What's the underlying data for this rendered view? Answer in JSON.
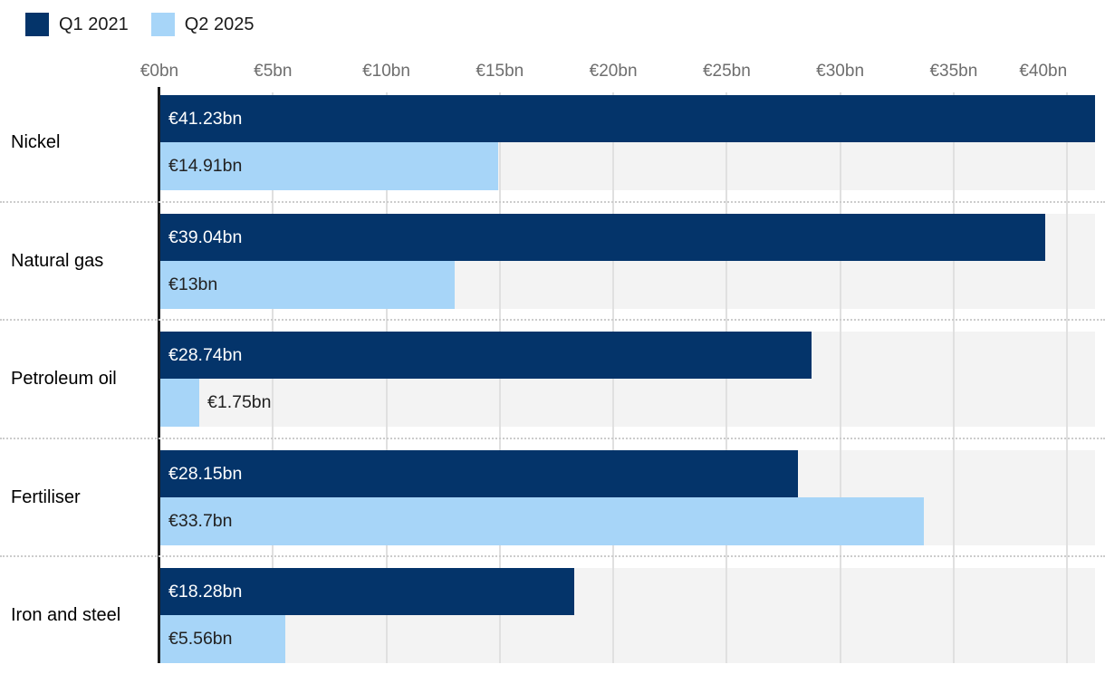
{
  "legend": {
    "items": [
      {
        "label": "Q1 2021",
        "color": "#04346a"
      },
      {
        "label": "Q2 2025",
        "color": "#a7d5f8"
      }
    ]
  },
  "chart_data": {
    "type": "bar",
    "orientation": "horizontal",
    "title": "",
    "xlabel": "",
    "ylabel": "",
    "unit": "€bn",
    "categories": [
      "Nickel",
      "Natural gas",
      "Petroleum oil",
      "Fertiliser",
      "Iron and steel"
    ],
    "series": [
      {
        "name": "Q1 2021",
        "color": "#04346a",
        "label_color": "#ffffff",
        "values": [
          41.23,
          39.04,
          28.74,
          28.15,
          18.28
        ],
        "value_labels": [
          "€41.23bn",
          "€39.04bn",
          "€28.74bn",
          "€28.15bn",
          "€18.28bn"
        ]
      },
      {
        "name": "Q2 2025",
        "color": "#a7d5f8",
        "label_color": "#222222",
        "values": [
          14.91,
          13,
          1.75,
          33.7,
          5.56
        ],
        "value_labels": [
          "€14.91bn",
          "€13bn",
          "€1.75bn",
          "€33.7bn",
          "€5.56bn"
        ]
      }
    ],
    "x_axis": {
      "min": 0,
      "max": 41.23,
      "ticks": [
        {
          "value": 0,
          "label": "€0bn"
        },
        {
          "value": 5,
          "label": "€5bn"
        },
        {
          "value": 10,
          "label": "€10bn"
        },
        {
          "value": 15,
          "label": "€15bn"
        },
        {
          "value": 20,
          "label": "€20bn"
        },
        {
          "value": 25,
          "label": "€25bn"
        },
        {
          "value": 30,
          "label": "€30bn"
        },
        {
          "value": 35,
          "label": "€35bn"
        },
        {
          "value": 40,
          "label": "€40bn"
        }
      ]
    },
    "layout_hints": {
      "grid": true,
      "legend_position": "top-left",
      "band_background": "#f3f3f3",
      "gridline_color": "#e0e0e0",
      "separator_style": "dotted",
      "value_labels_inside_bars": true
    }
  }
}
